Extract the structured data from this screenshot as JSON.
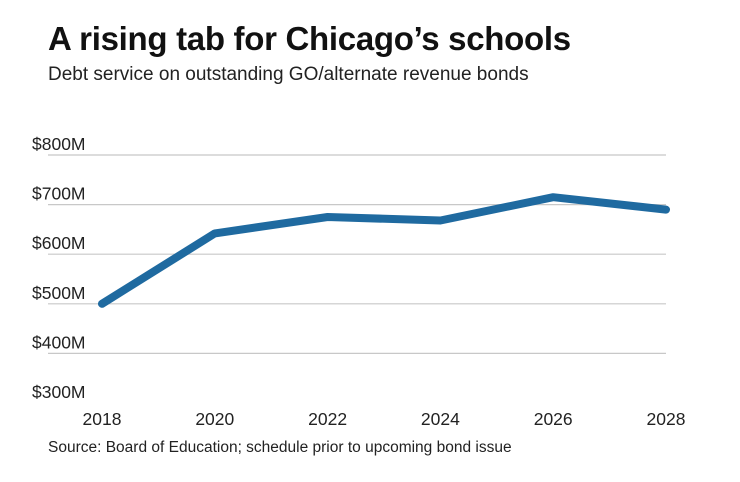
{
  "title": "A rising tab for Chicago’s schools",
  "subtitle": "Debt service on outstanding GO/alternate revenue bonds",
  "source": "Source: Board of Education; schedule prior to upcoming bond issue",
  "colors": {
    "line": "#1f6aa0",
    "grid": "#c8c8c8",
    "text": "#222222"
  },
  "chart_data": {
    "type": "line",
    "title": "A rising tab for Chicago’s schools",
    "subtitle": "Debt service on outstanding GO/alternate revenue bonds",
    "xlabel": "",
    "ylabel": "",
    "xlim": [
      2018,
      2028
    ],
    "ylim": [
      300,
      800
    ],
    "y_unit": "$M",
    "grid": true,
    "x_ticks": [
      2018,
      2020,
      2022,
      2024,
      2026,
      2028
    ],
    "x_tick_labels": [
      "2018",
      "2020",
      "2022",
      "2024",
      "2026",
      "2028"
    ],
    "y_ticks": [
      800,
      700,
      600,
      500,
      400,
      300
    ],
    "y_tick_labels": [
      "$800M",
      "$700M",
      "$600M",
      "$500M",
      "$400M",
      "$300M"
    ],
    "series": [
      {
        "name": "Debt service",
        "x": [
          2018,
          2020,
          2022,
          2024,
          2026,
          2028
        ],
        "values": [
          500,
          642,
          675,
          668,
          715,
          690
        ]
      }
    ]
  }
}
